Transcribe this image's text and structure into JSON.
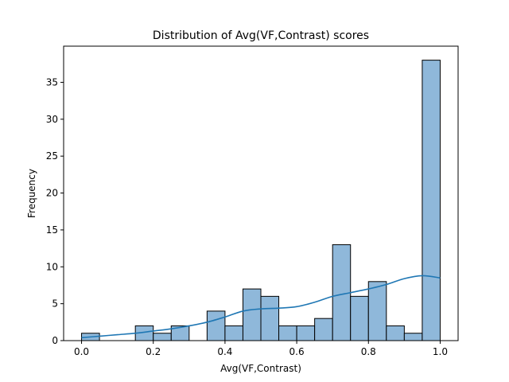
{
  "chart_data": {
    "type": "bar",
    "title": "Distribution of Avg(VF,Contrast) scores",
    "xlabel": "Avg(VF,Contrast)",
    "ylabel": "Frequency",
    "xlim": [
      -0.05,
      1.05
    ],
    "ylim": [
      0,
      39.9
    ],
    "xticks": [
      0.0,
      0.2,
      0.4,
      0.6,
      0.8,
      1.0
    ],
    "xtick_labels": [
      "0.0",
      "0.2",
      "0.4",
      "0.6",
      "0.8",
      "1.0"
    ],
    "yticks": [
      0,
      5,
      10,
      15,
      20,
      25,
      30,
      35
    ],
    "ytick_labels": [
      "0",
      "5",
      "10",
      "15",
      "20",
      "25",
      "30",
      "35"
    ],
    "bin_width": 0.05,
    "bin_starts": [
      0.0,
      0.05,
      0.1,
      0.15,
      0.2,
      0.25,
      0.3,
      0.35,
      0.4,
      0.45,
      0.5,
      0.55,
      0.6,
      0.65,
      0.7,
      0.75,
      0.8,
      0.85,
      0.9,
      0.95
    ],
    "values": [
      1,
      0,
      0,
      2,
      1,
      2,
      0,
      4,
      2,
      7,
      6,
      2,
      2,
      3,
      13,
      6,
      8,
      2,
      1,
      38
    ],
    "kde": {
      "x": [
        0.0,
        0.05,
        0.1,
        0.15,
        0.2,
        0.25,
        0.3,
        0.35,
        0.4,
        0.45,
        0.5,
        0.55,
        0.6,
        0.65,
        0.7,
        0.75,
        0.8,
        0.85,
        0.9,
        0.95,
        1.0
      ],
      "y": [
        0.4,
        0.6,
        0.8,
        1.0,
        1.3,
        1.6,
        2.0,
        2.5,
        3.2,
        4.0,
        4.3,
        4.4,
        4.6,
        5.2,
        6.0,
        6.5,
        7.0,
        7.6,
        8.4,
        8.8,
        8.5
      ]
    },
    "grid": false,
    "legend": "none",
    "colors": {
      "bar_fill": "#8fb8da",
      "bar_edge": "#000000",
      "kde_line": "#1f77b4"
    }
  }
}
